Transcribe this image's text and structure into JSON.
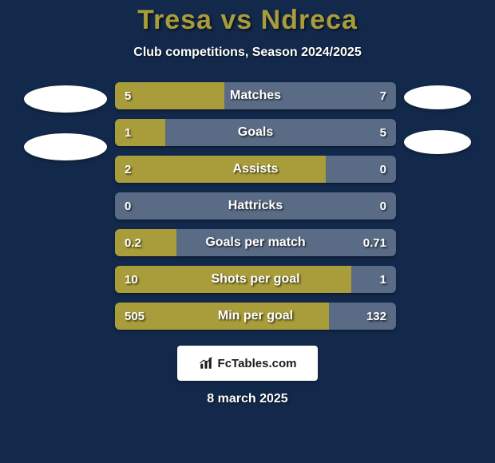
{
  "background_color": "#13294b",
  "title": {
    "text": "Tresa vs Ndreca",
    "color": "#a99c3a",
    "fontsize": 34
  },
  "subtitle": "Club competitions, Season 2024/2025",
  "left_color": "#a99c3a",
  "right_color": "#b0c4de",
  "bar_bg": "#5a6b85",
  "bars": [
    {
      "label": "Matches",
      "left_val": "5",
      "right_val": "7",
      "left_pct": 39,
      "right_pct": 0
    },
    {
      "label": "Goals",
      "left_val": "1",
      "right_val": "5",
      "left_pct": 18,
      "right_pct": 0
    },
    {
      "label": "Assists",
      "left_val": "2",
      "right_val": "0",
      "left_pct": 75,
      "right_pct": 0
    },
    {
      "label": "Hattricks",
      "left_val": "0",
      "right_val": "0",
      "left_pct": 0,
      "right_pct": 0
    },
    {
      "label": "Goals per match",
      "left_val": "0.2",
      "right_val": "0.71",
      "left_pct": 22,
      "right_pct": 0
    },
    {
      "label": "Shots per goal",
      "left_val": "10",
      "right_val": "1",
      "left_pct": 84,
      "right_pct": 0
    },
    {
      "label": "Min per goal",
      "left_val": "505",
      "right_val": "132",
      "left_pct": 76,
      "right_pct": 0
    }
  ],
  "brand": "FcTables.com",
  "date": "8 march 2025"
}
